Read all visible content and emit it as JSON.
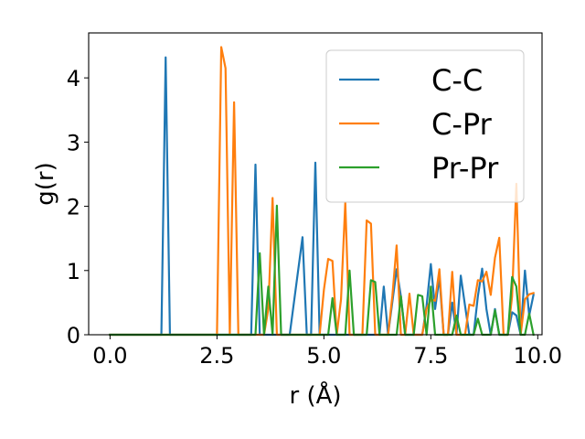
{
  "chart_data": {
    "type": "line",
    "xlabel": "r (Å)",
    "ylabel": "g(r)",
    "xlim": [
      -0.5,
      10.1
    ],
    "ylim": [
      0,
      4.7
    ],
    "xticks": [
      0.0,
      2.5,
      5.0,
      7.5,
      10.0
    ],
    "xtick_labels": [
      "0.0",
      "2.5",
      "5.0",
      "7.5",
      "10.0"
    ],
    "yticks": [
      0,
      1,
      2,
      3,
      4
    ],
    "ytick_labels": [
      "0",
      "1",
      "2",
      "3",
      "4"
    ],
    "legend_position": "top-right",
    "grid": false,
    "series": [
      {
        "name": "C-C",
        "color": "#1f77b4",
        "points": [
          [
            0.0,
            0.0
          ],
          [
            1.2,
            0.0
          ],
          [
            1.3,
            4.32
          ],
          [
            1.4,
            0.0
          ],
          [
            3.3,
            0.0
          ],
          [
            3.4,
            2.65
          ],
          [
            3.5,
            0.0
          ],
          [
            4.2,
            0.0
          ],
          [
            4.5,
            1.52
          ],
          [
            4.6,
            0.0
          ],
          [
            4.7,
            0.0
          ],
          [
            4.8,
            2.68
          ],
          [
            4.9,
            0.0
          ],
          [
            5.2,
            0.0
          ],
          [
            5.4,
            0.0
          ],
          [
            5.5,
            0.0
          ],
          [
            5.8,
            0.0
          ],
          [
            6.1,
            0.0
          ],
          [
            6.3,
            0.0
          ],
          [
            6.4,
            0.75
          ],
          [
            6.5,
            0.0
          ],
          [
            6.7,
            1.02
          ],
          [
            6.8,
            0.6
          ],
          [
            6.9,
            0.0
          ],
          [
            7.3,
            0.0
          ],
          [
            7.4,
            0.45
          ],
          [
            7.5,
            1.1
          ],
          [
            7.6,
            0.4
          ],
          [
            7.7,
            0.9
          ],
          [
            7.8,
            0.0
          ],
          [
            7.9,
            0.0
          ],
          [
            8.0,
            0.5
          ],
          [
            8.1,
            0.0
          ],
          [
            8.2,
            0.92
          ],
          [
            8.3,
            0.45
          ],
          [
            8.4,
            0.0
          ],
          [
            8.5,
            0.0
          ],
          [
            8.6,
            0.6
          ],
          [
            8.7,
            1.03
          ],
          [
            8.8,
            0.4
          ],
          [
            8.9,
            0.0
          ],
          [
            9.0,
            0.4
          ],
          [
            9.1,
            0.0
          ],
          [
            9.3,
            0.0
          ],
          [
            9.4,
            0.35
          ],
          [
            9.5,
            0.3
          ],
          [
            9.6,
            0.0
          ],
          [
            9.7,
            1.0
          ],
          [
            9.8,
            0.3
          ],
          [
            9.9,
            0.62
          ]
        ]
      },
      {
        "name": "C-Pr",
        "color": "#ff7f0e",
        "points": [
          [
            0.0,
            0.0
          ],
          [
            2.5,
            0.0
          ],
          [
            2.6,
            4.48
          ],
          [
            2.7,
            4.15
          ],
          [
            2.8,
            0.0
          ],
          [
            2.9,
            3.62
          ],
          [
            3.0,
            0.0
          ],
          [
            3.6,
            0.0
          ],
          [
            3.7,
            0.4
          ],
          [
            3.8,
            2.13
          ],
          [
            3.9,
            0.0
          ],
          [
            4.9,
            0.0
          ],
          [
            5.0,
            0.7
          ],
          [
            5.1,
            1.18
          ],
          [
            5.2,
            1.15
          ],
          [
            5.3,
            0.0
          ],
          [
            5.4,
            0.55
          ],
          [
            5.5,
            2.06
          ],
          [
            5.6,
            0.0
          ],
          [
            5.9,
            0.0
          ],
          [
            6.0,
            1.78
          ],
          [
            6.1,
            1.73
          ],
          [
            6.2,
            0.0
          ],
          [
            6.5,
            0.0
          ],
          [
            6.6,
            0.6
          ],
          [
            6.7,
            1.39
          ],
          [
            6.8,
            0.0
          ],
          [
            6.9,
            0.0
          ],
          [
            7.0,
            0.64
          ],
          [
            7.1,
            0.0
          ],
          [
            7.3,
            0.0
          ],
          [
            7.4,
            0.4
          ],
          [
            7.5,
            0.55
          ],
          [
            7.6,
            0.53
          ],
          [
            7.7,
            1.02
          ],
          [
            7.8,
            0.0
          ],
          [
            7.9,
            0.0
          ],
          [
            8.0,
            0.98
          ],
          [
            8.1,
            0.0
          ],
          [
            8.3,
            0.0
          ],
          [
            8.4,
            0.47
          ],
          [
            8.5,
            0.45
          ],
          [
            8.6,
            0.85
          ],
          [
            8.7,
            0.83
          ],
          [
            8.8,
            0.98
          ],
          [
            8.9,
            0.62
          ],
          [
            9.0,
            1.2
          ],
          [
            9.1,
            1.51
          ],
          [
            9.2,
            0.0
          ],
          [
            9.3,
            0.0
          ],
          [
            9.4,
            0.6
          ],
          [
            9.5,
            2.35
          ],
          [
            9.6,
            0.0
          ],
          [
            9.7,
            0.55
          ],
          [
            9.8,
            0.63
          ],
          [
            9.9,
            0.65
          ]
        ]
      },
      {
        "name": "Pr-Pr",
        "color": "#2ca02c",
        "points": [
          [
            0.0,
            0.0
          ],
          [
            3.4,
            0.0
          ],
          [
            3.5,
            1.27
          ],
          [
            3.6,
            0.0
          ],
          [
            3.7,
            0.75
          ],
          [
            3.8,
            0.0
          ],
          [
            3.9,
            2.01
          ],
          [
            4.0,
            0.0
          ],
          [
            5.1,
            0.0
          ],
          [
            5.2,
            0.57
          ],
          [
            5.3,
            0.0
          ],
          [
            5.5,
            0.0
          ],
          [
            5.6,
            1.0
          ],
          [
            5.7,
            0.0
          ],
          [
            6.0,
            0.0
          ],
          [
            6.1,
            0.85
          ],
          [
            6.2,
            0.82
          ],
          [
            6.3,
            0.0
          ],
          [
            6.7,
            0.0
          ],
          [
            6.8,
            0.6
          ],
          [
            6.9,
            0.0
          ],
          [
            7.1,
            0.0
          ],
          [
            7.2,
            0.62
          ],
          [
            7.3,
            0.6
          ],
          [
            7.4,
            0.0
          ],
          [
            7.5,
            0.75
          ],
          [
            7.6,
            0.0
          ],
          [
            8.0,
            0.0
          ],
          [
            8.1,
            0.3
          ],
          [
            8.2,
            0.0
          ],
          [
            8.5,
            0.0
          ],
          [
            8.6,
            0.25
          ],
          [
            8.7,
            0.0
          ],
          [
            8.9,
            0.0
          ],
          [
            9.0,
            0.38
          ],
          [
            9.1,
            0.0
          ],
          [
            9.3,
            0.0
          ],
          [
            9.4,
            0.9
          ],
          [
            9.5,
            0.75
          ],
          [
            9.6,
            0.0
          ],
          [
            9.7,
            0.0
          ],
          [
            9.8,
            0.33
          ],
          [
            9.9,
            0.0
          ]
        ]
      }
    ]
  }
}
